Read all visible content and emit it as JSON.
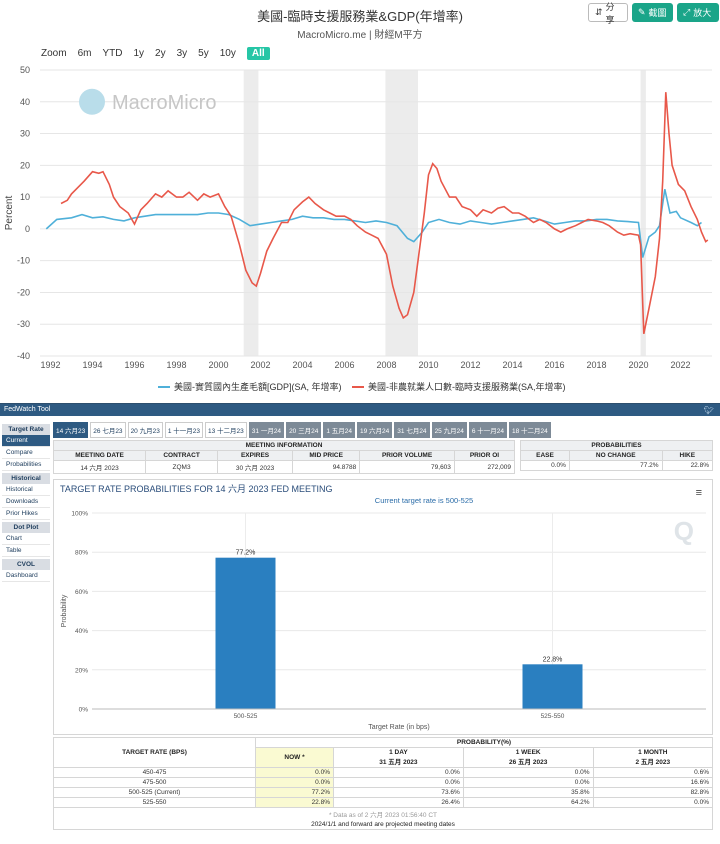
{
  "header": {
    "title": "美國-臨時支援服務業&GDP(年增率)",
    "subtitle": "MacroMicro.me | 財經M平方",
    "share_label": "分享",
    "screenshot_label": "截圖",
    "zoom_label": "放大"
  },
  "zoom_bar": {
    "label": "Zoom",
    "options": [
      "6m",
      "YTD",
      "1y",
      "2y",
      "3y",
      "5y",
      "10y",
      "All"
    ],
    "active": "All"
  },
  "watermark": "MacroMicro",
  "chart_data": [
    {
      "type": "line",
      "ylabel": "Percent",
      "ylim": [
        -40,
        50
      ],
      "yticks": [
        -40,
        -30,
        -20,
        -10,
        0,
        10,
        20,
        30,
        40,
        50
      ],
      "xlim": [
        1991.5,
        2023.5
      ],
      "xticks": [
        1992,
        1994,
        1996,
        1998,
        2000,
        2002,
        2004,
        2006,
        2008,
        2010,
        2012,
        2014,
        2016,
        2018,
        2020,
        2022
      ],
      "recessions": [
        [
          2001.2,
          2001.9
        ],
        [
          2007.95,
          2009.5
        ],
        [
          2020.1,
          2020.35
        ]
      ],
      "legend_position": "bottom",
      "series": [
        {
          "name": "美國-實質國內生產毛額[GDP](SA, 年增率)",
          "color": "#4fb0d9",
          "points": [
            [
              1991.8,
              0
            ],
            [
              1992.3,
              3
            ],
            [
              1993,
              3.5
            ],
            [
              1993.5,
              4.5
            ],
            [
              1994,
              3.5
            ],
            [
              1994.5,
              3.8
            ],
            [
              1995,
              3
            ],
            [
              1995.5,
              2.5
            ],
            [
              1996,
              3.5
            ],
            [
              1996.5,
              4
            ],
            [
              1997,
              4.5
            ],
            [
              1997.5,
              4.5
            ],
            [
              1998,
              4.5
            ],
            [
              1998.5,
              4.5
            ],
            [
              1999,
              4.5
            ],
            [
              1999.5,
              5
            ],
            [
              2000,
              5
            ],
            [
              2000.5,
              4.5
            ],
            [
              2001,
              3
            ],
            [
              2001.5,
              1
            ],
            [
              2002,
              1.5
            ],
            [
              2002.5,
              2
            ],
            [
              2003,
              2.5
            ],
            [
              2003.5,
              3
            ],
            [
              2004,
              4
            ],
            [
              2004.5,
              3.5
            ],
            [
              2005,
              3.5
            ],
            [
              2005.5,
              3
            ],
            [
              2006,
              3
            ],
            [
              2006.5,
              2.5
            ],
            [
              2007,
              2
            ],
            [
              2007.5,
              2.5
            ],
            [
              2008,
              2
            ],
            [
              2008.5,
              1
            ],
            [
              2009,
              -3
            ],
            [
              2009.3,
              -4
            ],
            [
              2009.7,
              -1
            ],
            [
              2010,
              2
            ],
            [
              2010.5,
              3
            ],
            [
              2011,
              2
            ],
            [
              2011.5,
              1.5
            ],
            [
              2012,
              2.5
            ],
            [
              2012.5,
              2
            ],
            [
              2013,
              1.5
            ],
            [
              2013.5,
              2
            ],
            [
              2014,
              2.5
            ],
            [
              2014.5,
              3
            ],
            [
              2015,
              3.5
            ],
            [
              2015.5,
              2.5
            ],
            [
              2016,
              1.5
            ],
            [
              2016.5,
              2
            ],
            [
              2017,
              2.5
            ],
            [
              2017.5,
              2.5
            ],
            [
              2018,
              3
            ],
            [
              2018.5,
              3
            ],
            [
              2019,
              2.5
            ],
            [
              2019.5,
              2.3
            ],
            [
              2020,
              2
            ],
            [
              2020.2,
              -9
            ],
            [
              2020.5,
              -2.5
            ],
            [
              2020.8,
              -1
            ],
            [
              2021,
              1
            ],
            [
              2021.25,
              12.5
            ],
            [
              2021.5,
              5
            ],
            [
              2021.8,
              5.5
            ],
            [
              2022,
              3.5
            ],
            [
              2022.5,
              2
            ],
            [
              2022.8,
              1
            ],
            [
              2023,
              2
            ]
          ]
        },
        {
          "name": "美國-非農就業人口數-臨時支援服務業(SA,年增率)",
          "color": "#e8584a",
          "points": [
            [
              1992.5,
              8
            ],
            [
              1992.8,
              9
            ],
            [
              1993,
              11
            ],
            [
              1993.3,
              13
            ],
            [
              1993.6,
              15
            ],
            [
              1994,
              18
            ],
            [
              1994.3,
              17.5
            ],
            [
              1994.5,
              18
            ],
            [
              1994.8,
              14
            ],
            [
              1995,
              10
            ],
            [
              1995.3,
              7
            ],
            [
              1995.7,
              5
            ],
            [
              1996,
              1.5
            ],
            [
              1996.3,
              6
            ],
            [
              1996.6,
              8
            ],
            [
              1997,
              11
            ],
            [
              1997.3,
              10
            ],
            [
              1997.6,
              12
            ],
            [
              1998,
              10
            ],
            [
              1998.3,
              10
            ],
            [
              1998.6,
              11.5
            ],
            [
              1999,
              9
            ],
            [
              1999.3,
              11
            ],
            [
              1999.6,
              10
            ],
            [
              2000,
              11
            ],
            [
              2000.3,
              7
            ],
            [
              2000.6,
              4
            ],
            [
              2001,
              -5
            ],
            [
              2001.3,
              -13
            ],
            [
              2001.6,
              -17
            ],
            [
              2001.8,
              -18
            ],
            [
              2002,
              -14
            ],
            [
              2002.3,
              -7
            ],
            [
              2002.6,
              -3
            ],
            [
              2003,
              2
            ],
            [
              2003.3,
              2
            ],
            [
              2003.6,
              6
            ],
            [
              2004,
              8.5
            ],
            [
              2004.3,
              10
            ],
            [
              2004.6,
              8
            ],
            [
              2005,
              6
            ],
            [
              2005.3,
              5
            ],
            [
              2005.6,
              4
            ],
            [
              2006,
              4
            ],
            [
              2006.3,
              3
            ],
            [
              2006.6,
              1
            ],
            [
              2007,
              -1
            ],
            [
              2007.3,
              -2
            ],
            [
              2007.6,
              -3
            ],
            [
              2008,
              -8
            ],
            [
              2008.3,
              -18
            ],
            [
              2008.6,
              -25
            ],
            [
              2008.8,
              -28
            ],
            [
              2009,
              -27
            ],
            [
              2009.3,
              -20
            ],
            [
              2009.6,
              -5
            ],
            [
              2009.8,
              5
            ],
            [
              2010,
              17
            ],
            [
              2010.2,
              20.5
            ],
            [
              2010.4,
              19
            ],
            [
              2010.6,
              15
            ],
            [
              2011,
              10
            ],
            [
              2011.3,
              10
            ],
            [
              2011.6,
              7
            ],
            [
              2012,
              6
            ],
            [
              2012.3,
              4
            ],
            [
              2012.6,
              6
            ],
            [
              2013,
              5
            ],
            [
              2013.3,
              6.5
            ],
            [
              2013.6,
              7
            ],
            [
              2014,
              5
            ],
            [
              2014.3,
              5
            ],
            [
              2014.6,
              4
            ],
            [
              2015,
              2
            ],
            [
              2015.3,
              3
            ],
            [
              2015.6,
              2
            ],
            [
              2016,
              0
            ],
            [
              2016.3,
              -1
            ],
            [
              2016.6,
              0
            ],
            [
              2017,
              1
            ],
            [
              2017.3,
              2
            ],
            [
              2017.6,
              3
            ],
            [
              2018,
              2.5
            ],
            [
              2018.3,
              2
            ],
            [
              2018.6,
              1
            ],
            [
              2019,
              -1
            ],
            [
              2019.3,
              -2
            ],
            [
              2019.6,
              -1.5
            ],
            [
              2020,
              -2
            ],
            [
              2020.1,
              -5
            ],
            [
              2020.25,
              -33
            ],
            [
              2020.5,
              -25
            ],
            [
              2020.8,
              -15
            ],
            [
              2021,
              -3
            ],
            [
              2021.15,
              15
            ],
            [
              2021.3,
              43
            ],
            [
              2021.45,
              30
            ],
            [
              2021.6,
              20
            ],
            [
              2021.9,
              14
            ],
            [
              2022.2,
              12
            ],
            [
              2022.5,
              7
            ],
            [
              2022.8,
              3
            ],
            [
              2023,
              -1
            ],
            [
              2023.2,
              -4
            ],
            [
              2023.3,
              -3.5
            ]
          ]
        }
      ]
    },
    {
      "type": "bar",
      "title": "Current target rate is 500-525",
      "xlabel": "Target Rate (in bps)",
      "ylabel": "Probability",
      "categories": [
        "500-525",
        "525-550"
      ],
      "values": [
        77.2,
        22.8
      ],
      "data_labels": [
        "77.2%",
        "22.8%"
      ],
      "ylim": [
        0,
        100
      ],
      "yticks": [
        "0%",
        "20%",
        "40%",
        "60%",
        "80%",
        "100%"
      ],
      "bar_color": "#2a7fc0"
    }
  ],
  "fedwatch": {
    "header_title": "FedWatch Tool",
    "sidebar": [
      {
        "section": "Target Rate",
        "items": [
          "Current",
          "Compare",
          "Probabilities"
        ]
      },
      {
        "section": "Historical",
        "items": [
          "Historical",
          "Downloads",
          "Prior Hikes"
        ]
      },
      {
        "section": "Dot Plot",
        "items": [
          "Chart",
          "Table"
        ]
      },
      {
        "section": "CVOL",
        "items": [
          "Dashboard"
        ]
      }
    ],
    "active_sidebar_item": "Current",
    "tabs": [
      "14 六月23",
      "26 七月23",
      "20 九月23",
      "1 十一月23",
      "13 十二月23",
      "31 一月24",
      "20 三月24",
      "1 五月24",
      "19 六月24",
      "31 七月24",
      "25 九月24",
      "6 十一月24",
      "18 十二月24"
    ],
    "active_tab": "14 六月23",
    "meeting_info": {
      "section_title": "MEETING INFORMATION",
      "headers": [
        "MEETING DATE",
        "CONTRACT",
        "EXPIRES",
        "MID PRICE",
        "PRIOR VOLUME",
        "PRIOR OI"
      ],
      "values": [
        "14 六月 2023",
        "ZQM3",
        "30 六月 2023",
        "94.8788",
        "79,603",
        "272,009"
      ]
    },
    "probabilities": {
      "section_title": "PROBABILITIES",
      "headers": [
        "EASE",
        "NO CHANGE",
        "HIKE"
      ],
      "values": [
        "0.0%",
        "77.2%",
        "22.8%"
      ]
    },
    "chart_title": "TARGET RATE PROBABILITIES FOR 14 六月 2023 FED MEETING",
    "chart_subtitle": "Current target rate is 500-525",
    "prob_table": {
      "header_left": "TARGET RATE (BPS)",
      "header_group": "PROBABILITY(%)",
      "columns": [
        {
          "line1": "NOW *",
          "line2": ""
        },
        {
          "line1": "1 DAY",
          "line2": "31 五月 2023"
        },
        {
          "line1": "1 WEEK",
          "line2": "26 五月 2023"
        },
        {
          "line1": "1 MONTH",
          "line2": "2 五月 2023"
        }
      ],
      "rows": [
        {
          "rate": "450-475",
          "values": [
            "0.0%",
            "0.0%",
            "0.0%",
            "0.6%"
          ]
        },
        {
          "rate": "475-500",
          "values": [
            "0.0%",
            "0.0%",
            "0.0%",
            "16.6%"
          ]
        },
        {
          "rate": "500-525 (Current)",
          "values": [
            "77.2%",
            "73.6%",
            "35.8%",
            "82.8%"
          ]
        },
        {
          "rate": "525-550",
          "values": [
            "22.8%",
            "26.4%",
            "64.2%",
            "0.0%"
          ]
        }
      ],
      "footnote": "* Data as of 2 六月 2023 01:56:40 CT",
      "note": "2024/1/1 and forward are projected meeting dates"
    }
  }
}
